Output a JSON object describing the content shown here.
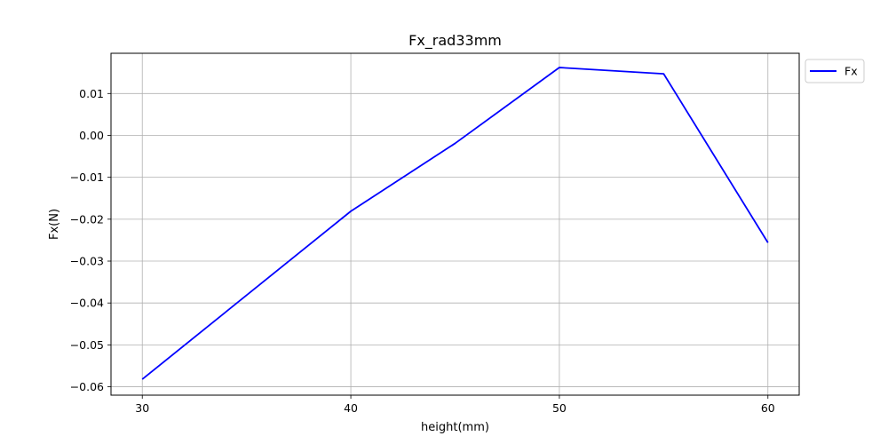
{
  "chart_data": {
    "type": "line",
    "title": "Fx_rad33mm",
    "xlabel": "height(mm)",
    "ylabel": "Fx(N)",
    "xlim": [
      28.5,
      61.5
    ],
    "ylim": [
      -0.062,
      0.0196
    ],
    "xticks": [
      30,
      40,
      50,
      60
    ],
    "yticks": [
      -0.06,
      -0.05,
      -0.04,
      -0.03,
      -0.02,
      -0.01,
      0.0,
      0.01
    ],
    "ytick_labels": [
      "−0.06",
      "−0.05",
      "−0.04",
      "−0.03",
      "−0.02",
      "−0.01",
      "0.00",
      "0.01"
    ],
    "grid": true,
    "legend_position": "outside-top-right",
    "series": [
      {
        "name": "Fx",
        "color": "#0000ff",
        "x": [
          30,
          40,
          45,
          50,
          55,
          60
        ],
        "y": [
          -0.0582,
          -0.0181,
          -0.0019,
          0.0162,
          0.0147,
          -0.0256
        ]
      }
    ]
  }
}
